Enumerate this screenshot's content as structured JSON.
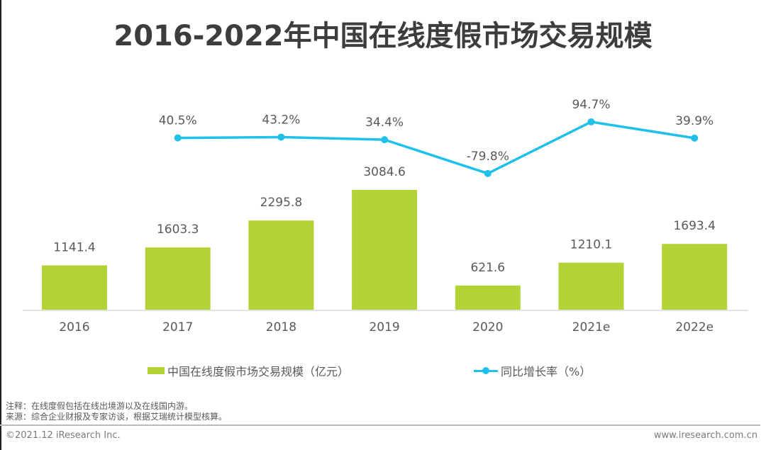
{
  "title": "2016-2022年中国在线度假市场交易规模",
  "chart_data": {
    "type": "bar+line",
    "title": "2016-2022年中国在线度假市场交易规模",
    "categories": [
      "2016",
      "2017",
      "2018",
      "2019",
      "2020",
      "2021e",
      "2022e"
    ],
    "series": [
      {
        "name": "中国在线度假市场交易规模（亿元）",
        "type": "bar",
        "color": "#b2d235",
        "values": [
          1141.4,
          1603.3,
          2295.8,
          3084.6,
          621.6,
          1210.1,
          1693.4
        ],
        "labels": [
          "1141.4",
          "1603.3",
          "2295.8",
          "3084.6",
          "621.6",
          "1210.1",
          "1693.4"
        ]
      },
      {
        "name": "同比增长率（%）",
        "type": "line",
        "color": "#1fc0ea",
        "values": [
          null,
          40.5,
          43.2,
          34.4,
          -79.8,
          94.7,
          39.9
        ],
        "labels": [
          "",
          "40.5%",
          "43.2%",
          "34.4%",
          "-79.8%",
          "94.7%",
          "39.9%"
        ]
      }
    ],
    "xlabel": "",
    "ylabel": "",
    "grid": false,
    "legend_position": "bottom"
  },
  "legend": {
    "bar_label": "中国在线度假市场交易规模（亿元）",
    "line_label": "同比增长率（%）"
  },
  "notes": {
    "note": "注释：在线度假包括在线出境游以及在线国内游。",
    "source": "来源：综合企业财报及专家访谈，根据艾瑞统计模型核算。"
  },
  "footer": {
    "copyright": "©2021.12 iResearch Inc.",
    "website": "www.iresearch.com.cn"
  }
}
